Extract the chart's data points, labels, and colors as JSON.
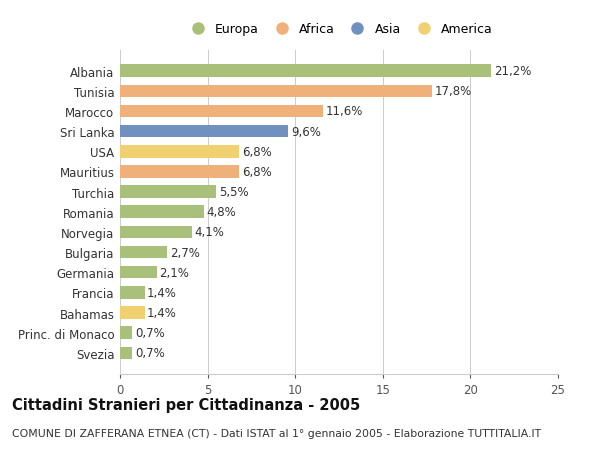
{
  "categories": [
    "Albania",
    "Tunisia",
    "Marocco",
    "Sri Lanka",
    "USA",
    "Mauritius",
    "Turchia",
    "Romania",
    "Norvegia",
    "Bulgaria",
    "Germania",
    "Francia",
    "Bahamas",
    "Princ. di Monaco",
    "Svezia"
  ],
  "values": [
    21.2,
    17.8,
    11.6,
    9.6,
    6.8,
    6.8,
    5.5,
    4.8,
    4.1,
    2.7,
    2.1,
    1.4,
    1.4,
    0.7,
    0.7
  ],
  "labels": [
    "21,2%",
    "17,8%",
    "11,6%",
    "9,6%",
    "6,8%",
    "6,8%",
    "5,5%",
    "4,8%",
    "4,1%",
    "2,7%",
    "2,1%",
    "1,4%",
    "1,4%",
    "0,7%",
    "0,7%"
  ],
  "colors": [
    "#a8c07a",
    "#f0b07a",
    "#f0b07a",
    "#7090bf",
    "#f0d070",
    "#f0b07a",
    "#a8c07a",
    "#a8c07a",
    "#a8c07a",
    "#a8c07a",
    "#a8c07a",
    "#a8c07a",
    "#f0d070",
    "#a8c07a",
    "#a8c07a"
  ],
  "legend_labels": [
    "Europa",
    "Africa",
    "Asia",
    "America"
  ],
  "legend_colors": [
    "#a8c07a",
    "#f0b07a",
    "#7090bf",
    "#f0d070"
  ],
  "title": "Cittadini Stranieri per Cittadinanza - 2005",
  "subtitle": "COMUNE DI ZAFFERANA ETNEA (CT) - Dati ISTAT al 1° gennaio 2005 - Elaborazione TUTTITALIA.IT",
  "xlim": [
    0,
    25
  ],
  "xticks": [
    0,
    5,
    10,
    15,
    20,
    25
  ],
  "background_color": "#ffffff",
  "bar_height": 0.62,
  "grid_color": "#cccccc",
  "label_fontsize": 8.5,
  "tick_fontsize": 8.5,
  "title_fontsize": 10.5,
  "subtitle_fontsize": 7.8,
  "legend_fontsize": 9
}
